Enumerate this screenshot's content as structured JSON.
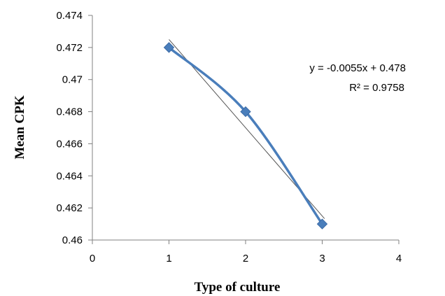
{
  "chart_data": {
    "type": "scatter",
    "title": "",
    "xlabel": "Type of culture",
    "ylabel": "Mean CPK",
    "xlim": [
      0,
      4
    ],
    "ylim": [
      0.46,
      0.474
    ],
    "x_ticks": [
      "0",
      "1",
      "2",
      "3",
      "4"
    ],
    "y_ticks": [
      "0.46",
      "0.462",
      "0.464",
      "0.466",
      "0.468",
      "0.47",
      "0.472",
      "0.474"
    ],
    "grid": false,
    "legend": "none",
    "series": [
      {
        "x": [
          1,
          2,
          3
        ],
        "y": [
          0.472,
          0.468,
          0.461
        ],
        "color": "#4a7ebb",
        "marker": "diamond",
        "line": "smooth"
      }
    ],
    "trendline": {
      "type": "linear",
      "slope": -0.0055,
      "intercept": 0.478,
      "color": "#555555"
    },
    "annotations": {
      "equation": "y = -0.0055x + 0.478",
      "r_squared": "R² = 0.9758"
    }
  }
}
